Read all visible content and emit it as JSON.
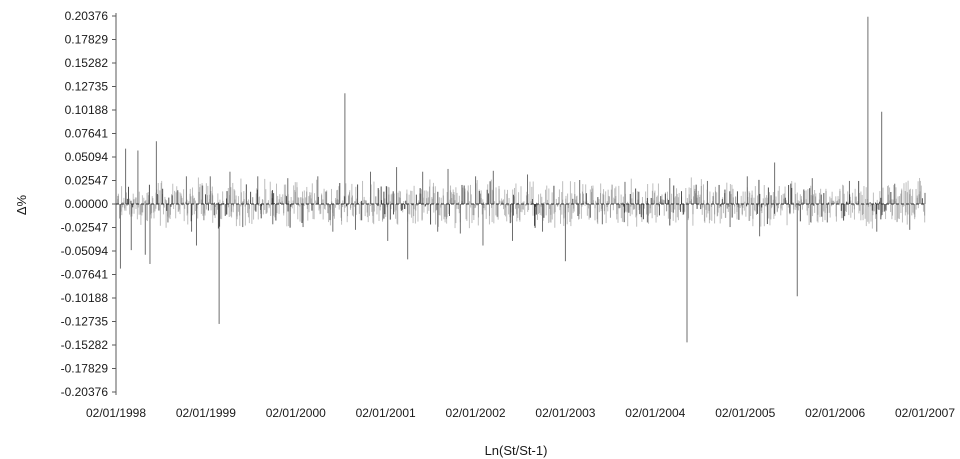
{
  "chart_data": {
    "type": "line",
    "title": "",
    "xlabel": "Ln(St/St-1)",
    "ylabel": "Δ%",
    "ylim": [
      -0.20376,
      0.20376
    ],
    "y_ticks": [
      "0.20376",
      "0.17829",
      "0.15282",
      "0.12735",
      "0.10188",
      "0.07641",
      "0.05094",
      "0.02547",
      "0.00000",
      "-0.02547",
      "-0.05094",
      "-0.07641",
      "-0.10188",
      "-0.12735",
      "-0.15282",
      "-0.17829",
      "-0.20376"
    ],
    "x_ticks": [
      "02/01/1998",
      "02/01/1999",
      "02/01/2000",
      "02/01/2001",
      "02/01/2002",
      "02/01/2003",
      "02/01/2004",
      "02/01/2005",
      "02/01/2006",
      "02/01/2007"
    ],
    "xlim": [
      "1998-01-02",
      "2007-01-02"
    ],
    "grid": false,
    "legend": "none",
    "colors": {
      "series": "#6e6e6e",
      "dark": "#333333",
      "axis": "#5a5a5a",
      "text": "#1a1a1a"
    },
    "series": [
      {
        "values": [
          [
            "1998-01-02",
            0.065
          ],
          [
            "1998-01-20",
            -0.07
          ],
          [
            "1998-02-10",
            0.06
          ],
          [
            "1998-03-05",
            -0.05
          ],
          [
            "1998-04-01",
            0.058
          ],
          [
            "1998-05-01",
            -0.055
          ],
          [
            "1998-05-20",
            -0.065
          ],
          [
            "1998-06-15",
            0.068
          ],
          [
            "1998-08-01",
            -0.02
          ],
          [
            "1998-09-10",
            0.015
          ],
          [
            "1998-10-15",
            0.03
          ],
          [
            "1998-11-05",
            -0.03
          ],
          [
            "1998-11-25",
            -0.045
          ],
          [
            "1998-12-20",
            0.02
          ],
          [
            "1999-01-20",
            0.03
          ],
          [
            "1999-02-25",
            -0.13
          ],
          [
            "1999-04-10",
            0.035
          ],
          [
            "1999-06-01",
            -0.025
          ],
          [
            "1999-08-01",
            0.03
          ],
          [
            "1999-10-01",
            -0.022
          ],
          [
            "1999-12-01",
            0.028
          ],
          [
            "2000-02-01",
            -0.025
          ],
          [
            "2000-04-01",
            0.03
          ],
          [
            "2000-06-01",
            -0.03
          ],
          [
            "2000-07-20",
            0.12
          ],
          [
            "2000-09-01",
            -0.028
          ],
          [
            "2000-11-01",
            0.035
          ],
          [
            "2001-01-10",
            -0.04
          ],
          [
            "2001-02-15",
            0.04
          ],
          [
            "2001-04-01",
            -0.06
          ],
          [
            "2001-06-01",
            0.035
          ],
          [
            "2001-08-01",
            -0.03
          ],
          [
            "2001-09-12",
            0.038
          ],
          [
            "2001-11-01",
            -0.032
          ],
          [
            "2002-01-02",
            0.03
          ],
          [
            "2002-02-01",
            -0.045
          ],
          [
            "2002-03-15",
            0.036
          ],
          [
            "2002-06-01",
            -0.04
          ],
          [
            "2002-08-01",
            0.032
          ],
          [
            "2002-10-01",
            -0.03
          ],
          [
            "2003-01-02",
            -0.062
          ],
          [
            "2003-03-01",
            0.026
          ],
          [
            "2003-06-01",
            -0.022
          ],
          [
            "2003-09-01",
            0.024
          ],
          [
            "2003-12-01",
            -0.02
          ],
          [
            "2004-03-01",
            0.028
          ],
          [
            "2004-05-10",
            -0.15
          ],
          [
            "2004-08-01",
            0.025
          ],
          [
            "2004-11-01",
            -0.025
          ],
          [
            "2005-01-10",
            0.03
          ],
          [
            "2005-03-01",
            -0.035
          ],
          [
            "2005-05-01",
            0.045
          ],
          [
            "2005-08-01",
            -0.1
          ],
          [
            "2005-10-01",
            0.028
          ],
          [
            "2005-12-01",
            -0.02
          ],
          [
            "2006-03-01",
            0.025
          ],
          [
            "2006-05-15",
            0.203
          ],
          [
            "2006-06-20",
            -0.03
          ],
          [
            "2006-07-10",
            0.1
          ],
          [
            "2006-09-01",
            0.022
          ],
          [
            "2006-11-01",
            -0.028
          ],
          [
            "2007-01-02",
            0.012
          ]
        ]
      }
    ]
  }
}
